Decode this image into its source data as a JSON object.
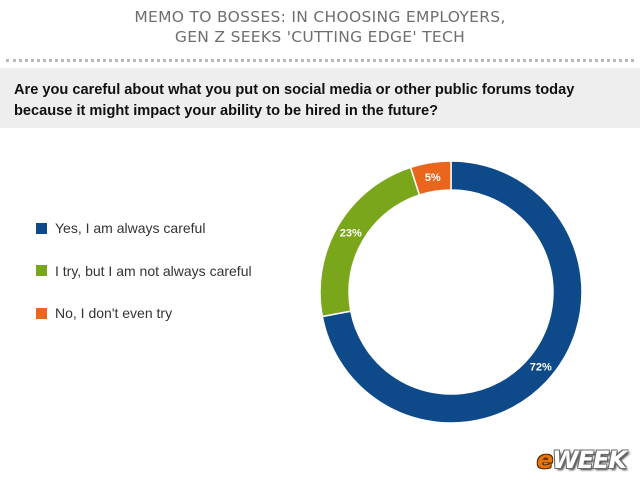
{
  "header": {
    "line1": "MEMO TO BOSSES: IN CHOOSING EMPLOYERS,",
    "line2": "GEN Z SEEKS 'CUTTING EDGE' TECH"
  },
  "question": {
    "line1": "Are you careful about what you put on social media or other public forums today",
    "line2": "because it might impact your ability to be hired in the future?"
  },
  "chart_data": {
    "type": "pie",
    "donut": true,
    "title": "Are you careful about what you put on social media or other public forums today because it might impact your ability to be hired in the future?",
    "legend_position": "left",
    "categories": [
      "Yes, I am always careful",
      "I try, but I am not always careful",
      "No, I don't even try"
    ],
    "values": [
      72,
      23,
      5
    ],
    "labels": [
      "72%",
      "23%",
      "5%"
    ],
    "colors": [
      "#0e4a8a",
      "#7aa61c",
      "#e9661c"
    ]
  },
  "logo": {
    "prefix": "e",
    "rest": "WEEK"
  }
}
